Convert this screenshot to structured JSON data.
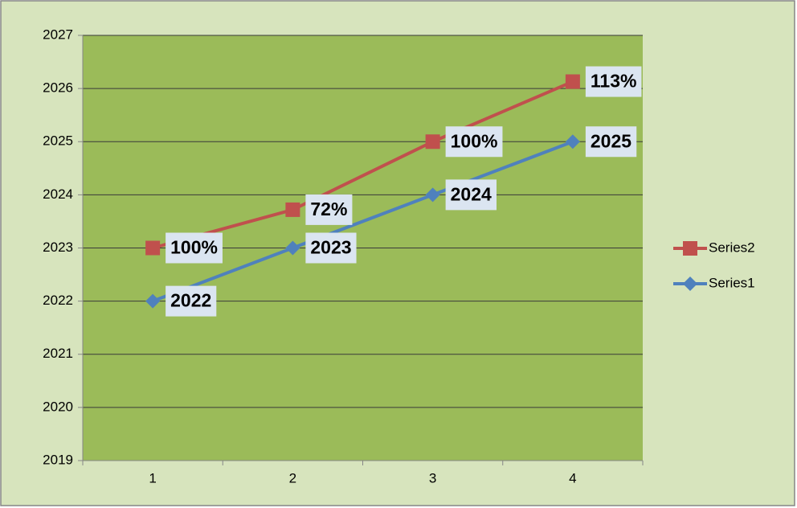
{
  "chart_data": {
    "type": "line",
    "categories": [
      "1",
      "2",
      "3",
      "4"
    ],
    "series": [
      {
        "name": "Series1",
        "color": "#4f81bd",
        "marker": "diamond",
        "values": [
          2022,
          2023,
          2024,
          2025
        ]
      },
      {
        "name": "Series2",
        "color": "#c0504d",
        "marker": "square",
        "values": [
          2023,
          2023.72,
          2025,
          2026.13
        ],
        "labels": [
          "100%",
          "72%",
          "100%",
          "113%"
        ]
      }
    ],
    "ylim": [
      2019,
      2027
    ],
    "yticks": [
      2019,
      2020,
      2021,
      2022,
      2023,
      2024,
      2025,
      2026,
      2027
    ],
    "grid": true,
    "legend": "right"
  }
}
